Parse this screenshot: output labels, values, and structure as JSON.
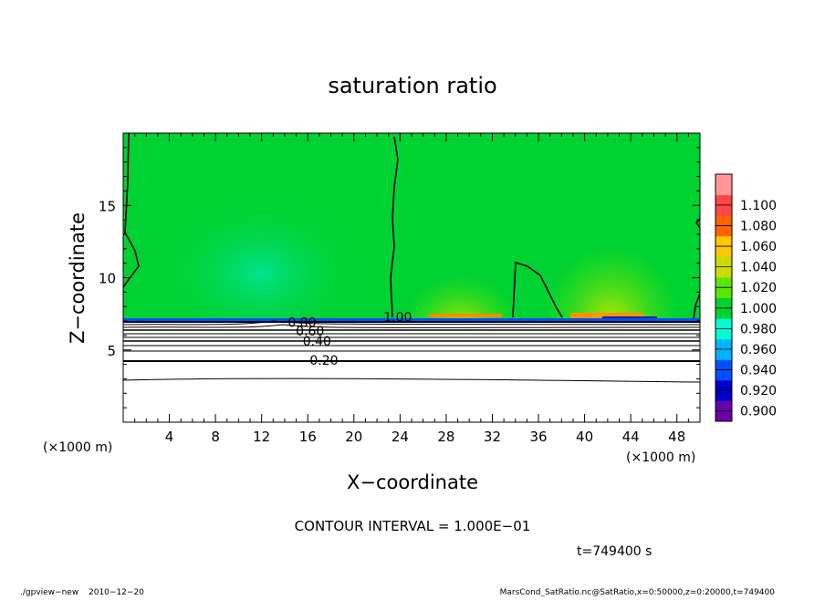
{
  "chart_data": {
    "type": "heatmap",
    "title": "saturation ratio",
    "xlabel": "X−coordinate",
    "ylabel": "Z−coordinate",
    "x_unit_left": "(×1000 m)",
    "x_unit_right": "(×1000 m)",
    "xlim": [
      0,
      50
    ],
    "ylim": [
      0,
      20
    ],
    "x_ticks": [
      4,
      8,
      12,
      16,
      20,
      24,
      28,
      32,
      36,
      40,
      44,
      48
    ],
    "x_tick_labels": [
      "4",
      "8",
      "12",
      "16",
      "20",
      "24",
      "28",
      "32",
      "36",
      "40",
      "44",
      "48"
    ],
    "y_ticks": [
      5,
      10,
      15
    ],
    "y_tick_labels": [
      "5",
      "10",
      "15"
    ],
    "colorbar": {
      "levels": [
        "0.900",
        "0.920",
        "0.940",
        "0.960",
        "0.980",
        "1.000",
        "1.020",
        "1.040",
        "1.060",
        "1.080",
        "1.100"
      ],
      "colors": [
        "#6a00a8",
        "#0000c8",
        "#0050ff",
        "#00b4ff",
        "#00ffd0",
        "#00d232",
        "#5ae600",
        "#c8dc00",
        "#ffc800",
        "#ff6400",
        "#ff4646",
        "#ff9696"
      ]
    },
    "contour_labels": [
      {
        "text": "1.00",
        "x": 23.8,
        "z": 7.3
      },
      {
        "text": "0.80",
        "x": 15.5,
        "z": 6.9
      },
      {
        "text": "0.60",
        "x": 16.2,
        "z": 6.3
      },
      {
        "text": "0.40",
        "x": 16.8,
        "z": 5.6
      },
      {
        "text": "0.20",
        "x": 17.4,
        "z": 4.3
      }
    ],
    "legend": "none",
    "grid": false
  },
  "footer": {
    "contour_interval": "CONTOUR INTERVAL = 1.000E−01",
    "time": "t=749400 s",
    "program": "./gpview−new",
    "date": "2010−12−20",
    "source": "MarsCond_SatRatio.nc@SatRatio,x=0:50000,z=0:20000,t=749400"
  }
}
